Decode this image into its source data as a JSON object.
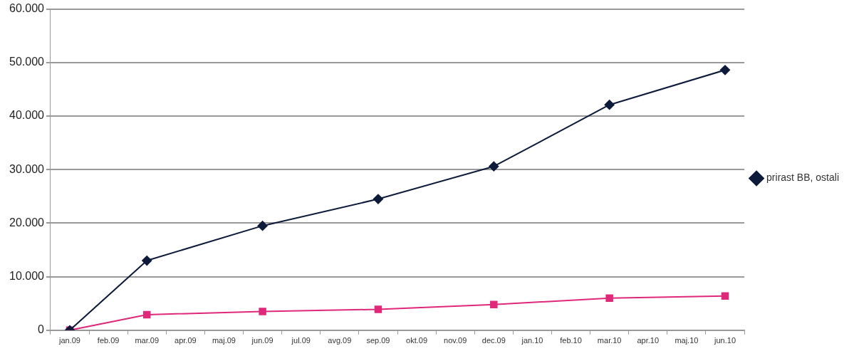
{
  "chart_data": {
    "type": "line",
    "categories": [
      "jan.09",
      "feb.09",
      "mar.09",
      "apr.09",
      "maj.09",
      "jun.09",
      "jul.09",
      "avg.09",
      "sep.09",
      "okt.09",
      "nov.09",
      "dec.09",
      "jan.10",
      "feb.10",
      "mar.10",
      "apr.10",
      "maj.10",
      "jun.10"
    ],
    "series": [
      {
        "name": "prirast BB, ostali",
        "color": "#0d1a3a",
        "marker": "diamond",
        "values": [
          0,
          null,
          13000,
          null,
          null,
          19500,
          null,
          null,
          24500,
          null,
          null,
          30600,
          null,
          null,
          42100,
          null,
          null,
          48600
        ]
      },
      {
        "color": "#e0287a",
        "marker": "square",
        "values": [
          0,
          null,
          2900,
          null,
          null,
          3500,
          null,
          null,
          3900,
          null,
          null,
          4800,
          null,
          null,
          6000,
          null,
          null,
          6400
        ]
      }
    ],
    "ylim": [
      0,
      60000
    ],
    "yticks": [
      {
        "value": 0,
        "label": "0"
      },
      {
        "value": 10000,
        "label": "10.000"
      },
      {
        "value": 20000,
        "label": "20.000"
      },
      {
        "value": 30000,
        "label": "30.000"
      },
      {
        "value": 40000,
        "label": "40.000"
      },
      {
        "value": 50000,
        "label": "50.000"
      },
      {
        "value": 60000,
        "label": "60.000"
      }
    ],
    "grid": "y",
    "legend": "right",
    "line_style": "solid"
  }
}
